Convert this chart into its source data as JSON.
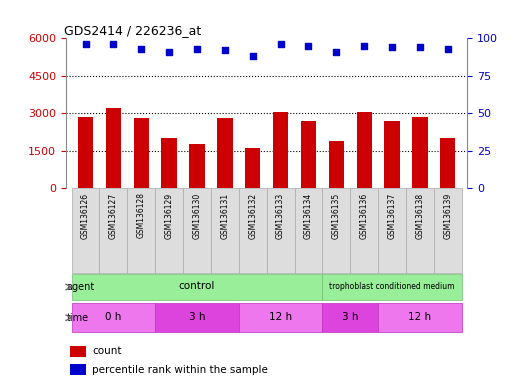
{
  "title": "GDS2414 / 226236_at",
  "samples": [
    "GSM136126",
    "GSM136127",
    "GSM136128",
    "GSM136129",
    "GSM136130",
    "GSM136131",
    "GSM136132",
    "GSM136133",
    "GSM136134",
    "GSM136135",
    "GSM136136",
    "GSM136137",
    "GSM136138",
    "GSM136139"
  ],
  "counts": [
    2850,
    3200,
    2830,
    2000,
    1750,
    2830,
    1600,
    3050,
    2700,
    1900,
    3050,
    2700,
    2850,
    2000
  ],
  "percentile_ranks": [
    96,
    96,
    93,
    91,
    93,
    92,
    88,
    96,
    95,
    91,
    95,
    94,
    94,
    93
  ],
  "bar_color": "#cc0000",
  "dot_color": "#0000cc",
  "ylim_left": [
    0,
    6000
  ],
  "ylim_right": [
    0,
    100
  ],
  "yticks_left": [
    0,
    1500,
    3000,
    4500,
    6000
  ],
  "yticks_right": [
    0,
    25,
    50,
    75,
    100
  ],
  "tick_color_left": "#cc0000",
  "tick_color_right": "#0000cc",
  "grid_color": "#000000",
  "agent_groups": [
    {
      "label": "control",
      "start": 0,
      "end": 9,
      "color": "#99ee99"
    },
    {
      "label": "trophoblast conditioned medium",
      "start": 9,
      "end": 14,
      "color": "#99ee99"
    }
  ],
  "time_groups": [
    {
      "label": "0 h",
      "start": 0,
      "end": 3,
      "color": "#ee77ee"
    },
    {
      "label": "3 h",
      "start": 3,
      "end": 6,
      "color": "#dd44dd"
    },
    {
      "label": "12 h",
      "start": 6,
      "end": 9,
      "color": "#ee77ee"
    },
    {
      "label": "3 h",
      "start": 9,
      "end": 11,
      "color": "#dd44dd"
    },
    {
      "label": "12 h",
      "start": 11,
      "end": 14,
      "color": "#ee77ee"
    }
  ],
  "legend_count_color": "#cc0000",
  "legend_dot_color": "#0000cc",
  "sample_box_color": "#dddddd",
  "sample_box_edge": "#aaaaaa"
}
